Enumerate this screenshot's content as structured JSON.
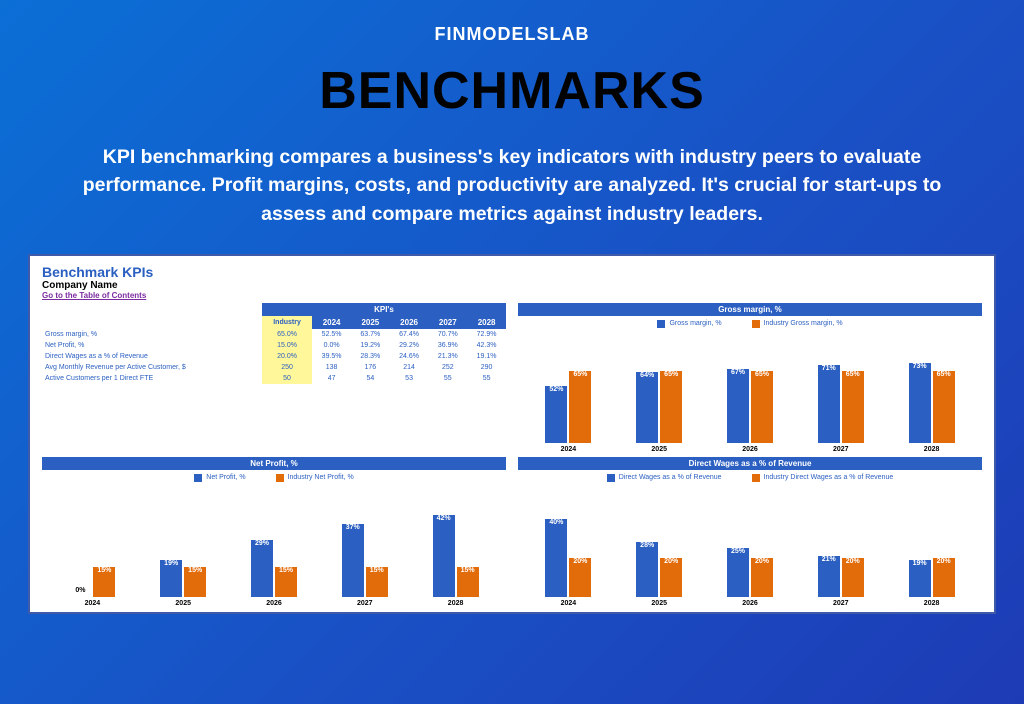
{
  "brand": "FINMODELSLAB",
  "title": "BENCHMARKS",
  "description": "KPI benchmarking compares a business's key indicators with industry peers to evaluate performance. Profit margins, costs, and productivity are analyzed. It's crucial for start-ups to assess and compare metrics against industry leaders.",
  "panel": {
    "title": "Benchmark KPIs",
    "company": "Company Name",
    "toc": "Go to the Table of Contents"
  },
  "kpi_table": {
    "header_label": "KPI's",
    "columns": [
      "Industry",
      "2024",
      "2025",
      "2026",
      "2027",
      "2028"
    ],
    "rows": [
      {
        "name": "Gross margin, %",
        "industry": "65.0%",
        "values": [
          "52.5%",
          "63.7%",
          "67.4%",
          "70.7%",
          "72.9%"
        ]
      },
      {
        "name": "Net Profit, %",
        "industry": "15.0%",
        "values": [
          "0.0%",
          "19.2%",
          "29.2%",
          "36.9%",
          "42.3%"
        ]
      },
      {
        "name": "Direct Wages as a % of Revenue",
        "industry": "20.0%",
        "values": [
          "39.5%",
          "28.3%",
          "24.6%",
          "21.3%",
          "19.1%"
        ]
      },
      {
        "name": "Avg Monthly Revenue per Active Customer, $",
        "industry": "250",
        "values": [
          "138",
          "176",
          "214",
          "252",
          "290"
        ]
      },
      {
        "name": "Active Customers per 1 Direct FTE",
        "industry": "50",
        "values": [
          "47",
          "54",
          "53",
          "55",
          "55"
        ]
      }
    ]
  },
  "charts": {
    "gross_margin": {
      "title": "Gross margin, %",
      "legend": {
        "series": "Gross margin, %",
        "industry": "Industry Gross margin, %"
      },
      "years": [
        "2024",
        "2025",
        "2026",
        "2027",
        "2028"
      ],
      "series_values": [
        52,
        64,
        67,
        71,
        73
      ],
      "industry_values": [
        65,
        65,
        65,
        65,
        65
      ],
      "series_labels": [
        "52%",
        "64%",
        "67%",
        "71%",
        "73%"
      ],
      "industry_labels": [
        "65%",
        "65%",
        "65%",
        "65%",
        "65%"
      ],
      "max": 80,
      "colors": {
        "series": "#2b5fc1",
        "industry": "#e26b0a"
      }
    },
    "net_profit": {
      "title": "Net Profit, %",
      "legend": {
        "series": "Net Profit, %",
        "industry": "Industry Net Profit, %"
      },
      "years": [
        "2024",
        "2025",
        "2026",
        "2027",
        "2028"
      ],
      "series_values": [
        0,
        19,
        29,
        37,
        42
      ],
      "industry_values": [
        15,
        15,
        15,
        15,
        15
      ],
      "series_labels": [
        "0%",
        "19%",
        "29%",
        "37%",
        "42%"
      ],
      "industry_labels": [
        "15%",
        "15%",
        "15%",
        "15%",
        "15%"
      ],
      "max": 45,
      "colors": {
        "series": "#2b5fc1",
        "industry": "#e26b0a"
      }
    },
    "direct_wages": {
      "title": "Direct Wages as a % of Revenue",
      "legend": {
        "series": "Direct Wages as a % of Revenue",
        "industry": "Industry Direct Wages as a % of Revenue"
      },
      "years": [
        "2024",
        "2025",
        "2026",
        "2027",
        "2028"
      ],
      "series_values": [
        40,
        28,
        25,
        21,
        19
      ],
      "industry_values": [
        20,
        20,
        20,
        20,
        20
      ],
      "series_labels": [
        "40%",
        "28%",
        "25%",
        "21%",
        "19%"
      ],
      "industry_labels": [
        "20%",
        "20%",
        "20%",
        "20%",
        "20%"
      ],
      "max": 45,
      "colors": {
        "series": "#2b5fc1",
        "industry": "#e26b0a"
      }
    }
  }
}
